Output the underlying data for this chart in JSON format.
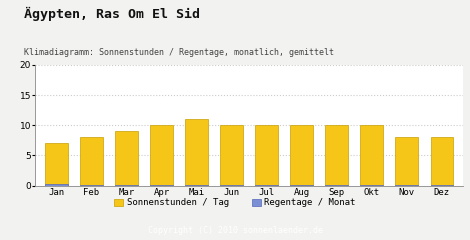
{
  "title": "Ägypten, Ras Om El Sid",
  "subtitle": "Klimadiagramm: Sonnenstunden / Regentage, monatlich, gemittelt",
  "months": [
    "Jan",
    "Feb",
    "Mar",
    "Apr",
    "Mai",
    "Jun",
    "Jul",
    "Aug",
    "Sep",
    "Okt",
    "Nov",
    "Dez"
  ],
  "sonnenstunden": [
    7,
    8,
    9,
    10,
    11,
    10,
    10,
    10,
    10,
    10,
    8,
    8
  ],
  "regentage": [
    0.2,
    0.1,
    0.1,
    0.1,
    0.1,
    0.1,
    0.1,
    0.1,
    0.1,
    0.1,
    0.1,
    0.1
  ],
  "bar_color_sun": "#F5C518",
  "bar_color_rain": "#7B8FD4",
  "background_color": "#F2F2F0",
  "plot_bg_color": "#FFFFFF",
  "footer_bg": "#AAAAAA",
  "footer_text": "Copyright (C) 2010 sonnenlaender.de",
  "footer_text_color": "#FFFFFF",
  "title_color": "#111111",
  "subtitle_color": "#444444",
  "ylim": [
    0,
    20
  ],
  "yticks": [
    0,
    5,
    10,
    15,
    20
  ],
  "grid_color": "#CCCCCC",
  "legend_sun": "Sonnenstunden / Tag",
  "legend_rain": "Regentage / Monat",
  "bar_width": 0.65,
  "sun_edge_color": "#C8A000",
  "rain_edge_color": "#5566BB"
}
